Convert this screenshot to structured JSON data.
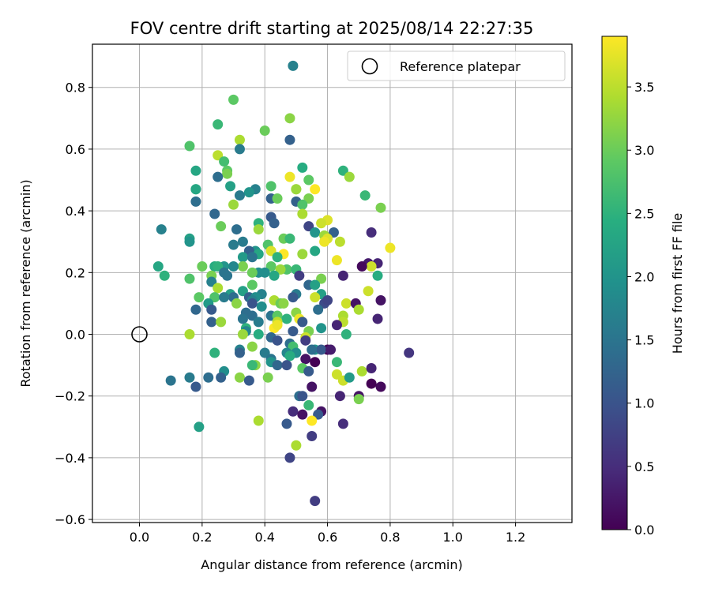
{
  "chart_data": {
    "type": "scatter",
    "title": "FOV centre drift starting at 2025/08/14 22:27:35",
    "xlabel": "Angular distance from reference (arcmin)",
    "ylabel": "Rotation from reference (arcmin)",
    "xlim": [
      -0.15,
      1.38
    ],
    "ylim": [
      -0.61,
      0.94
    ],
    "xticks": [
      "0.0",
      "0.2",
      "0.4",
      "0.6",
      "0.8",
      "1.0",
      "1.2"
    ],
    "yticks": [
      "−0.6",
      "−0.4",
      "−0.2",
      "0.0",
      "0.2",
      "0.4",
      "0.6",
      "0.8"
    ],
    "grid": true,
    "legend": {
      "placement": "top-right",
      "label": "Reference platepar"
    },
    "colorbar": {
      "label": "Hours from first FF file",
      "colormap": "viridis",
      "range": [
        0,
        3.9
      ],
      "ticks": [
        "0.0",
        "0.5",
        "1.0",
        "1.5",
        "2.0",
        "2.5",
        "3.0",
        "3.5"
      ]
    },
    "reference_point": {
      "x": 0.0,
      "y": 0.0
    },
    "points": [
      [
        0.49,
        0.87,
        1.7
      ],
      [
        0.3,
        0.76,
        2.9
      ],
      [
        0.48,
        0.7,
        3.2
      ],
      [
        0.25,
        0.68,
        2.6
      ],
      [
        0.4,
        0.66,
        3.0
      ],
      [
        0.32,
        0.63,
        3.4
      ],
      [
        0.48,
        0.63,
        1.2
      ],
      [
        0.16,
        0.61,
        2.8
      ],
      [
        0.32,
        0.6,
        1.6
      ],
      [
        0.25,
        0.58,
        3.5
      ],
      [
        0.27,
        0.56,
        2.7
      ],
      [
        0.52,
        0.54,
        2.4
      ],
      [
        0.65,
        0.53,
        2.5
      ],
      [
        0.28,
        0.53,
        2.9
      ],
      [
        0.18,
        0.53,
        2.3
      ],
      [
        0.28,
        0.52,
        3.1
      ],
      [
        0.67,
        0.51,
        3.3
      ],
      [
        0.48,
        0.51,
        3.8
      ],
      [
        0.54,
        0.5,
        2.9
      ],
      [
        0.25,
        0.51,
        1.4
      ],
      [
        0.5,
        0.47,
        3.5
      ],
      [
        0.56,
        0.47,
        3.9
      ],
      [
        0.29,
        0.48,
        2.2
      ],
      [
        0.42,
        0.48,
        2.8
      ],
      [
        0.37,
        0.47,
        1.7
      ],
      [
        0.18,
        0.47,
        2.6
      ],
      [
        0.35,
        0.46,
        2.0
      ],
      [
        0.18,
        0.47,
        2.3
      ],
      [
        0.5,
        0.47,
        3.3
      ],
      [
        0.42,
        0.44,
        1.2
      ],
      [
        0.44,
        0.44,
        3.0
      ],
      [
        0.72,
        0.45,
        2.6
      ],
      [
        0.32,
        0.45,
        1.6
      ],
      [
        0.54,
        0.44,
        3.1
      ],
      [
        0.18,
        0.43,
        1.4
      ],
      [
        0.5,
        0.43,
        1.2
      ],
      [
        0.52,
        0.42,
        2.8
      ],
      [
        0.3,
        0.42,
        3.3
      ],
      [
        0.77,
        0.41,
        3.1
      ],
      [
        0.24,
        0.39,
        1.3
      ],
      [
        0.52,
        0.39,
        3.4
      ],
      [
        0.42,
        0.38,
        1.1
      ],
      [
        0.6,
        0.37,
        3.7
      ],
      [
        0.58,
        0.36,
        3.6
      ],
      [
        0.38,
        0.36,
        2.5
      ],
      [
        0.43,
        0.36,
        1.2
      ],
      [
        0.54,
        0.35,
        0.8
      ],
      [
        0.26,
        0.35,
        3.0
      ],
      [
        0.31,
        0.34,
        1.4
      ],
      [
        0.38,
        0.34,
        3.3
      ],
      [
        0.62,
        0.33,
        1.2
      ],
      [
        0.07,
        0.34,
        1.7
      ],
      [
        0.74,
        0.33,
        0.5
      ],
      [
        0.56,
        0.33,
        2.0
      ],
      [
        0.59,
        0.32,
        3.3
      ],
      [
        0.46,
        0.31,
        3.0
      ],
      [
        0.16,
        0.31,
        2.2
      ],
      [
        0.48,
        0.31,
        2.6
      ],
      [
        0.6,
        0.31,
        3.7
      ],
      [
        0.16,
        0.3,
        2.0
      ],
      [
        0.59,
        0.3,
        3.8
      ],
      [
        0.33,
        0.3,
        1.6
      ],
      [
        0.64,
        0.3,
        3.5
      ],
      [
        0.3,
        0.29,
        1.6
      ],
      [
        0.41,
        0.29,
        2.8
      ],
      [
        0.37,
        0.27,
        2.0
      ],
      [
        0.56,
        0.27,
        2.3
      ],
      [
        0.8,
        0.28,
        3.8
      ],
      [
        0.35,
        0.27,
        1.2
      ],
      [
        0.38,
        0.26,
        2.3
      ],
      [
        0.52,
        0.26,
        3.3
      ],
      [
        0.42,
        0.27,
        3.7
      ],
      [
        0.46,
        0.26,
        3.9
      ],
      [
        0.33,
        0.25,
        2.1
      ],
      [
        0.36,
        0.25,
        1.5
      ],
      [
        0.44,
        0.25,
        2.5
      ],
      [
        0.63,
        0.24,
        3.8
      ],
      [
        0.76,
        0.23,
        0.4
      ],
      [
        0.73,
        0.23,
        0.3
      ],
      [
        0.27,
        0.22,
        2.0
      ],
      [
        0.33,
        0.22,
        3.1
      ],
      [
        0.3,
        0.22,
        1.8
      ],
      [
        0.2,
        0.22,
        3.0
      ],
      [
        0.24,
        0.22,
        2.4
      ],
      [
        0.25,
        0.22,
        2.5
      ],
      [
        0.74,
        0.22,
        3.6
      ],
      [
        0.42,
        0.22,
        2.9
      ],
      [
        0.06,
        0.22,
        2.3
      ],
      [
        0.47,
        0.21,
        2.8
      ],
      [
        0.5,
        0.21,
        2.6
      ],
      [
        0.71,
        0.22,
        0.1
      ],
      [
        0.45,
        0.21,
        3.3
      ],
      [
        0.38,
        0.2,
        1.9
      ],
      [
        0.36,
        0.2,
        3.0
      ],
      [
        0.4,
        0.2,
        1.9
      ],
      [
        0.27,
        0.2,
        1.5
      ],
      [
        0.23,
        0.19,
        3.1
      ],
      [
        0.76,
        0.19,
        2.4
      ],
      [
        0.28,
        0.19,
        1.5
      ],
      [
        0.51,
        0.19,
        0.7
      ],
      [
        0.65,
        0.19,
        0.4
      ],
      [
        0.08,
        0.19,
        2.5
      ],
      [
        0.43,
        0.19,
        2.3
      ],
      [
        0.16,
        0.18,
        2.8
      ],
      [
        0.58,
        0.18,
        3.1
      ],
      [
        0.36,
        0.16,
        2.9
      ],
      [
        0.23,
        0.17,
        1.7
      ],
      [
        0.54,
        0.16,
        1.3
      ],
      [
        0.56,
        0.16,
        2.2
      ],
      [
        0.25,
        0.15,
        3.4
      ],
      [
        0.33,
        0.14,
        2.2
      ],
      [
        0.73,
        0.14,
        3.6
      ],
      [
        0.58,
        0.13,
        2.2
      ],
      [
        0.29,
        0.13,
        2.2
      ],
      [
        0.39,
        0.13,
        1.7
      ],
      [
        0.35,
        0.12,
        1.2
      ],
      [
        0.5,
        0.13,
        1.6
      ],
      [
        0.3,
        0.12,
        1.4
      ],
      [
        0.37,
        0.12,
        1.9
      ],
      [
        0.24,
        0.12,
        2.8
      ],
      [
        0.49,
        0.12,
        1.1
      ],
      [
        0.27,
        0.12,
        1.6
      ],
      [
        0.56,
        0.12,
        3.6
      ],
      [
        0.36,
        0.11,
        1.7
      ],
      [
        0.19,
        0.12,
        2.9
      ],
      [
        0.43,
        0.11,
        3.4
      ],
      [
        0.59,
        0.1,
        0.9
      ],
      [
        0.31,
        0.1,
        3.2
      ],
      [
        0.66,
        0.1,
        3.6
      ],
      [
        0.77,
        0.11,
        0.2
      ],
      [
        0.45,
        0.1,
        3.0
      ],
      [
        0.36,
        0.1,
        1.0
      ],
      [
        0.46,
        0.1,
        3.2
      ],
      [
        0.69,
        0.1,
        0.2
      ],
      [
        0.22,
        0.1,
        2.1
      ],
      [
        0.7,
        0.08,
        3.4
      ],
      [
        0.6,
        0.11,
        0.8
      ],
      [
        0.39,
        0.09,
        1.9
      ],
      [
        0.57,
        0.08,
        1.4
      ],
      [
        0.23,
        0.08,
        1.1
      ],
      [
        0.18,
        0.08,
        1.3
      ],
      [
        0.34,
        0.07,
        1.4
      ],
      [
        0.5,
        0.07,
        3.2
      ],
      [
        0.36,
        0.06,
        1.4
      ],
      [
        0.42,
        0.06,
        1.5
      ],
      [
        0.44,
        0.06,
        2.9
      ],
      [
        0.65,
        0.06,
        3.4
      ],
      [
        0.51,
        0.05,
        3.8
      ],
      [
        0.33,
        0.05,
        1.5
      ],
      [
        0.76,
        0.05,
        0.4
      ],
      [
        0.47,
        0.05,
        2.5
      ],
      [
        0.44,
        0.04,
        3.5
      ],
      [
        0.23,
        0.04,
        1.2
      ],
      [
        0.38,
        0.04,
        1.6
      ],
      [
        0.26,
        0.04,
        3.3
      ],
      [
        0.52,
        0.04,
        1.1
      ],
      [
        0.65,
        0.04,
        3.5
      ],
      [
        0.63,
        0.03,
        0.4
      ],
      [
        0.34,
        0.02,
        2.5
      ],
      [
        0.58,
        0.02,
        2.0
      ],
      [
        0.43,
        0.02,
        3.9
      ],
      [
        0.44,
        0.03,
        3.8
      ],
      [
        0.54,
        0.01,
        3.1
      ],
      [
        0.34,
        0.01,
        1.8
      ],
      [
        0.38,
        0.0,
        2.4
      ],
      [
        0.49,
        0.01,
        1.1
      ],
      [
        0.66,
        0.0,
        2.5
      ],
      [
        0.16,
        0.0,
        3.4
      ],
      [
        0.33,
        0.0,
        3.3
      ],
      [
        0.42,
        -0.01,
        1.3
      ],
      [
        0.44,
        -0.02,
        1.0
      ],
      [
        0.53,
        -0.01,
        3.6
      ],
      [
        0.53,
        -0.02,
        0.7
      ],
      [
        0.48,
        -0.03,
        1.4
      ],
      [
        0.49,
        -0.04,
        2.7
      ],
      [
        0.36,
        -0.04,
        3.2
      ],
      [
        0.24,
        -0.06,
        2.5
      ],
      [
        0.32,
        -0.05,
        1.7
      ],
      [
        0.56,
        -0.05,
        2.0
      ],
      [
        0.6,
        -0.05,
        0.0
      ],
      [
        0.58,
        -0.05,
        1.1
      ],
      [
        0.55,
        -0.05,
        1.4
      ],
      [
        0.47,
        -0.06,
        1.8
      ],
      [
        0.4,
        -0.06,
        1.6
      ],
      [
        0.32,
        -0.06,
        1.2
      ],
      [
        0.5,
        -0.06,
        1.9
      ],
      [
        0.48,
        -0.07,
        2.4
      ],
      [
        0.53,
        -0.08,
        0.2
      ],
      [
        0.56,
        -0.09,
        0.0
      ],
      [
        0.63,
        -0.09,
        2.6
      ],
      [
        0.42,
        -0.08,
        1.5
      ],
      [
        0.42,
        -0.09,
        2.0
      ],
      [
        0.37,
        -0.1,
        3.2
      ],
      [
        0.36,
        -0.1,
        2.6
      ],
      [
        0.44,
        -0.1,
        1.3
      ],
      [
        0.47,
        -0.1,
        1.0
      ],
      [
        0.52,
        -0.11,
        2.9
      ],
      [
        0.71,
        -0.12,
        3.4
      ],
      [
        0.74,
        -0.11,
        0.4
      ],
      [
        0.27,
        -0.12,
        1.9
      ],
      [
        0.54,
        -0.12,
        1.1
      ],
      [
        0.41,
        -0.14,
        3.1
      ],
      [
        0.32,
        -0.14,
        3.2
      ],
      [
        0.63,
        -0.13,
        3.6
      ],
      [
        0.26,
        -0.14,
        1.2
      ],
      [
        0.22,
        -0.14,
        1.4
      ],
      [
        0.16,
        -0.14,
        1.6
      ],
      [
        0.35,
        -0.15,
        1.1
      ],
      [
        0.65,
        -0.15,
        3.6
      ],
      [
        0.67,
        -0.14,
        2.1
      ],
      [
        0.1,
        -0.15,
        1.5
      ],
      [
        0.18,
        -0.17,
        1.1
      ],
      [
        0.77,
        -0.17,
        0.1
      ],
      [
        0.74,
        -0.16,
        0.0
      ],
      [
        0.55,
        -0.17,
        0.2
      ],
      [
        0.51,
        -0.2,
        1.4
      ],
      [
        0.7,
        -0.2,
        0.2
      ],
      [
        0.64,
        -0.2,
        0.4
      ],
      [
        0.52,
        -0.2,
        1.0
      ],
      [
        0.7,
        -0.21,
        3.1
      ],
      [
        0.54,
        -0.23,
        2.6
      ],
      [
        0.49,
        -0.25,
        0.5
      ],
      [
        0.58,
        -0.25,
        0.2
      ],
      [
        0.57,
        -0.26,
        1.1
      ],
      [
        0.52,
        -0.26,
        0.2
      ],
      [
        0.38,
        -0.28,
        3.4
      ],
      [
        0.47,
        -0.29,
        1.1
      ],
      [
        0.55,
        -0.28,
        3.9
      ],
      [
        0.65,
        -0.29,
        0.5
      ],
      [
        0.19,
        -0.3,
        2.2
      ],
      [
        0.55,
        -0.33,
        0.7
      ],
      [
        0.5,
        -0.36,
        3.4
      ],
      [
        0.48,
        -0.4,
        0.8
      ],
      [
        0.56,
        -0.54,
        0.7
      ],
      [
        0.86,
        -0.06,
        0.6
      ],
      [
        0.61,
        -0.05,
        0.3
      ]
    ]
  }
}
